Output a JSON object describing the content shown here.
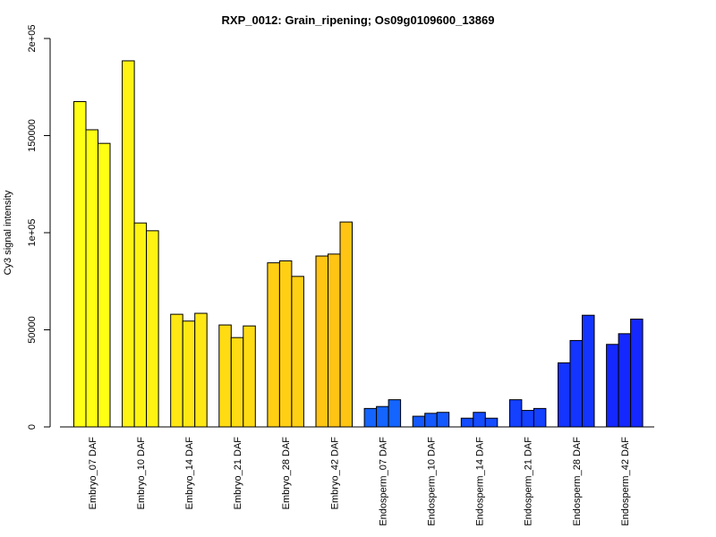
{
  "chart_data": {
    "type": "bar",
    "title": "RXP_0012: Grain_ripening; Os09g0109600_13869",
    "xlabel": "",
    "ylabel": "Cy3 signal intensity",
    "ylim": [
      0,
      200000
    ],
    "y_ticks": [
      {
        "value": 0,
        "label": "0"
      },
      {
        "value": 50000,
        "label": "50000"
      },
      {
        "value": 100000,
        "label": "1e+05"
      },
      {
        "value": 150000,
        "label": "150000"
      },
      {
        "value": 200000,
        "label": "2e+05"
      }
    ],
    "categories": [
      "Embryo_07 DAF",
      "Embryo_10 DAF",
      "Embryo_14 DAF",
      "Embryo_21 DAF",
      "Embryo_28 DAF",
      "Embryo_42 DAF",
      "Endosperm_07 DAF",
      "Endosperm_10 DAF",
      "Endosperm_14 DAF",
      "Endosperm_21 DAF",
      "Endosperm_28 DAF",
      "Endosperm_42 DAF"
    ],
    "group_colors": [
      "#ffff14",
      "#fff314",
      "#ffe714",
      "#ffdb14",
      "#ffcf14",
      "#ffc414",
      "#1464ff",
      "#1458ff",
      "#144cff",
      "#1440ff",
      "#1434ff",
      "#1428ff"
    ],
    "values": [
      [
        167500,
        153000,
        146000
      ],
      [
        188500,
        105000,
        101000
      ],
      [
        58000,
        54500,
        58500
      ],
      [
        52500,
        46000,
        52000
      ],
      [
        84500,
        85500,
        77500
      ],
      [
        88000,
        89000,
        105500
      ],
      [
        9500,
        10500,
        14000
      ],
      [
        5500,
        7000,
        7500
      ],
      [
        4500,
        7500,
        4500
      ],
      [
        14000,
        8500,
        9500
      ],
      [
        33000,
        44500,
        57500
      ],
      [
        42500,
        48000,
        55500
      ]
    ],
    "grid": false
  }
}
